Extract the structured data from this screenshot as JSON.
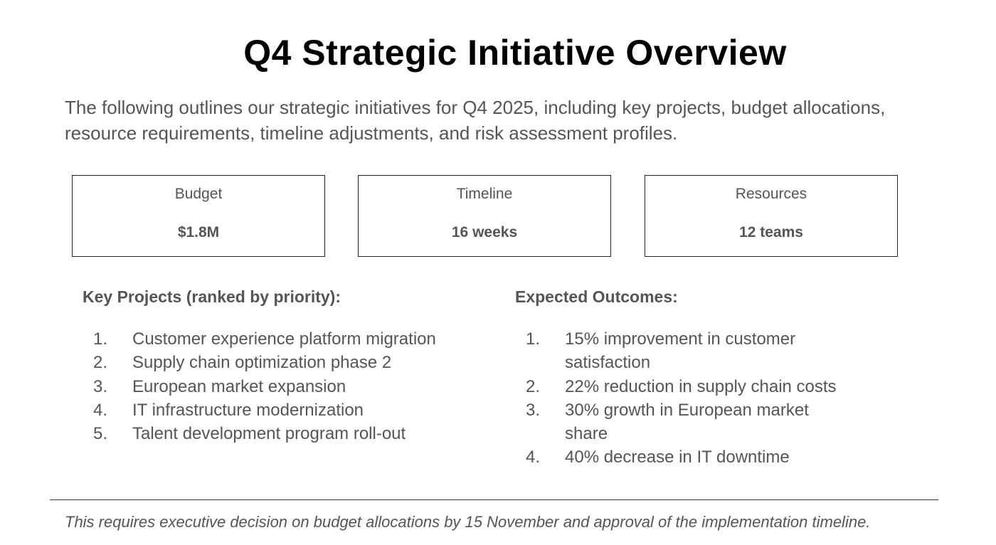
{
  "title": "Q4 Strategic Initiative Overview",
  "intro": "The following outlines our strategic initiatives for Q4 2025, including key projects, budget allocations, resource requirements, timeline adjustments, and risk assessment profiles.",
  "metrics": [
    {
      "label": "Budget",
      "value": "$1.8M"
    },
    {
      "label": "Timeline",
      "value": "16 weeks"
    },
    {
      "label": "Resources",
      "value": "12 teams"
    }
  ],
  "key_projects": {
    "heading": "Key Projects (ranked by priority):",
    "items": [
      {
        "num": "1.",
        "text": "Customer experience platform migration"
      },
      {
        "num": "2.",
        "text": "Supply chain optimization phase 2"
      },
      {
        "num": "3.",
        "text": "European market expansion"
      },
      {
        "num": "4.",
        "text": "IT infrastructure modernization"
      },
      {
        "num": "5.",
        "text": "Talent development program roll-out"
      }
    ]
  },
  "expected_outcomes": {
    "heading": "Expected Outcomes:",
    "items": [
      {
        "num": "1.",
        "text": "15% improvement in customer satisfaction"
      },
      {
        "num": "2.",
        "text": "22% reduction in supply chain costs"
      },
      {
        "num": "3.",
        "text": "30% growth in European market share"
      },
      {
        "num": "4.",
        "text": "40% decrease in IT downtime"
      }
    ]
  },
  "footer": "This requires executive decision on budget allocations by 15 November and approval of the implementation timeline."
}
